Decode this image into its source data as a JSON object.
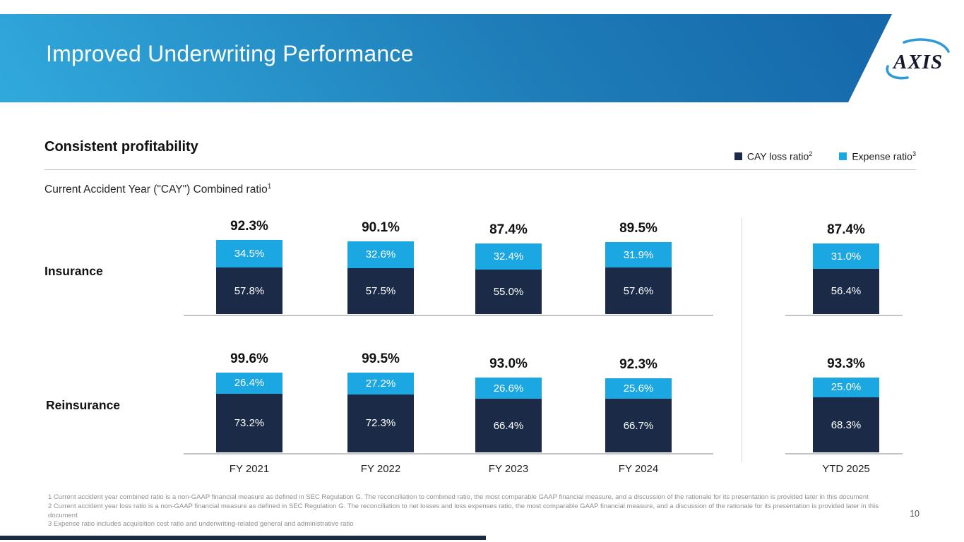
{
  "header": {
    "title": "Improved Underwriting Performance",
    "logo_text": "AXIS"
  },
  "section": {
    "heading": "Consistent profitability",
    "subtitle": "Current Accident Year (\"CAY\") Combined ratio",
    "subtitle_footnote_ref": "1"
  },
  "legend": {
    "items": [
      {
        "label": "CAY loss ratio",
        "footnote_ref": "2",
        "color": "#1a2a47"
      },
      {
        "label": "Expense ratio",
        "footnote_ref": "3",
        "color": "#1aa7e2"
      }
    ]
  },
  "chart_data": {
    "type": "bar",
    "stacked": true,
    "unit": "%",
    "legend_position": "top-right",
    "categories": [
      "FY 2021",
      "FY 2022",
      "FY 2023",
      "FY 2024",
      "YTD 2025"
    ],
    "groups": [
      {
        "name": "Insurance",
        "total_labels": [
          "92.3%",
          "90.1%",
          "87.4%",
          "89.5%",
          "87.4%"
        ],
        "series": [
          {
            "name": "CAY loss ratio",
            "color": "#1a2a47",
            "values": [
              57.8,
              57.5,
              55.0,
              57.6,
              56.4
            ]
          },
          {
            "name": "Expense ratio",
            "color": "#1aa7e2",
            "values": [
              34.5,
              32.6,
              32.4,
              31.9,
              31.0
            ]
          }
        ]
      },
      {
        "name": "Reinsurance",
        "total_labels": [
          "99.6%",
          "99.5%",
          "93.0%",
          "92.3%",
          "93.3%"
        ],
        "series": [
          {
            "name": "CAY loss ratio",
            "color": "#1a2a47",
            "values": [
              73.2,
              72.3,
              66.4,
              66.7,
              68.3
            ]
          },
          {
            "name": "Expense ratio",
            "color": "#1aa7e2",
            "values": [
              26.4,
              27.2,
              26.6,
              25.6,
              25.0
            ]
          }
        ]
      }
    ]
  },
  "footnotes": [
    "1 Current accident year combined ratio is a non-GAAP financial measure as defined in SEC Regulation G. The reconciliation to combined ratio, the most comparable GAAP financial measure, and a discussion of the rationale for its presentation is provided later in this document",
    "2 Current accident year loss ratio is a non-GAAP financial measure as defined in SEC Regulation G. The reconciliation to net losses and loss expenses ratio, the most comparable GAAP financial measure, and a discussion of the rationale for its presentation is provided later in this document",
    "3 Expense ratio includes acquisition cost ratio and underwriting-related general and administrative ratio"
  ],
  "page_number": "10"
}
